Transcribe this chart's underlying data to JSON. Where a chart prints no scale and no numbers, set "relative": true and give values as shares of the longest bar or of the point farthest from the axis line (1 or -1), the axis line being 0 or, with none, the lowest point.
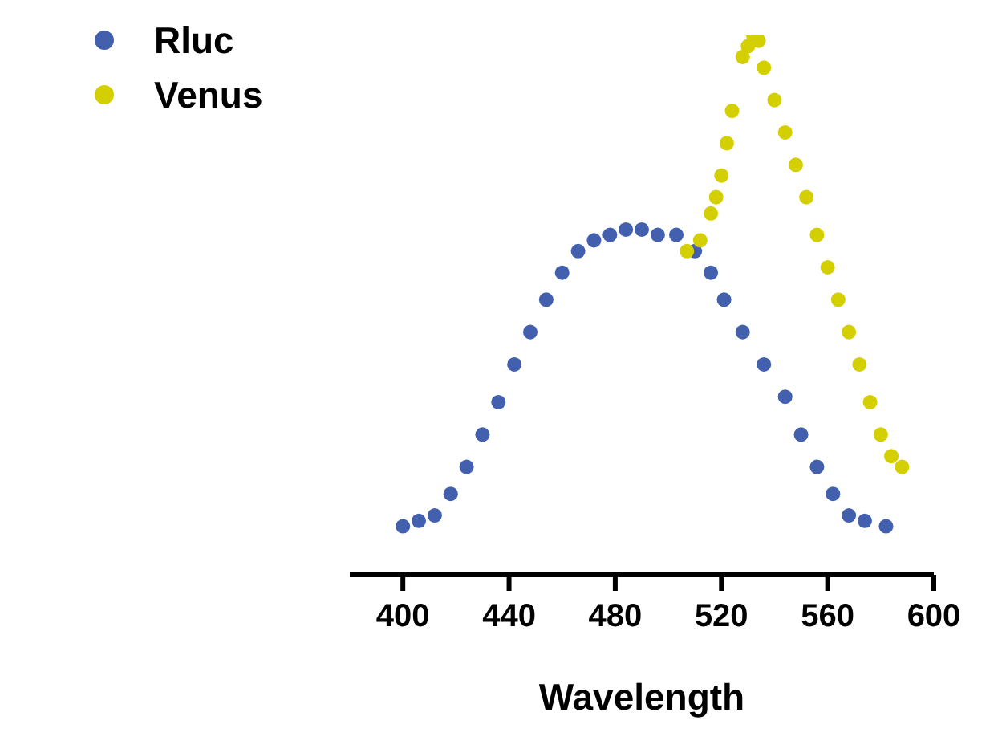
{
  "chart_data": {
    "type": "scatter",
    "xlabel": "Wavelength",
    "relative": true,
    "xlim": [
      380,
      600
    ],
    "xticks": [
      400,
      440,
      480,
      520,
      560,
      600
    ],
    "legend": "top left",
    "marker": "circle",
    "grid": false,
    "series": [
      {
        "name": "Rluc",
        "color": "#4360ae",
        "x": [
          400,
          406,
          412,
          418,
          424,
          430,
          436,
          442,
          448,
          454,
          460,
          466,
          472,
          478,
          484,
          490,
          496,
          503,
          510,
          516,
          521,
          528,
          536,
          544,
          550,
          556,
          562,
          568,
          574,
          582
        ],
        "values": [
          0.09,
          0.1,
          0.11,
          0.15,
          0.2,
          0.26,
          0.32,
          0.39,
          0.45,
          0.51,
          0.56,
          0.6,
          0.62,
          0.63,
          0.64,
          0.64,
          0.63,
          0.63,
          0.6,
          0.56,
          0.51,
          0.45,
          0.39,
          0.33,
          0.26,
          0.2,
          0.15,
          0.11,
          0.1,
          0.09
        ]
      },
      {
        "name": "Venus",
        "color": "#d4cf00",
        "x": [
          507,
          512,
          516,
          518,
          520,
          522,
          524,
          528,
          530,
          532,
          534,
          536,
          540,
          544,
          548,
          552,
          556,
          560,
          564,
          568,
          572,
          576,
          580,
          584,
          588
        ],
        "values": [
          0.6,
          0.62,
          0.67,
          0.7,
          0.74,
          0.8,
          0.86,
          0.96,
          0.98,
          1.0,
          0.99,
          0.94,
          0.88,
          0.82,
          0.76,
          0.7,
          0.63,
          0.57,
          0.51,
          0.45,
          0.39,
          0.32,
          0.26,
          0.22,
          0.2
        ]
      }
    ]
  }
}
